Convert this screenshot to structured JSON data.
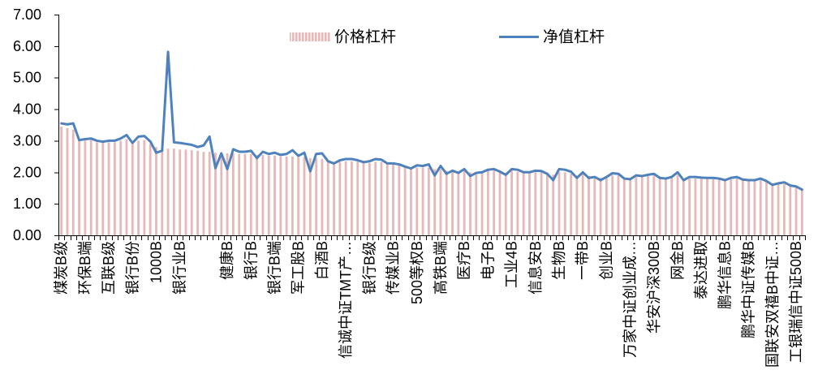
{
  "chart_data": {
    "type": "bar",
    "categories": [
      "煤炭B级",
      "",
      "",
      "",
      "环保B端",
      "",
      "",
      "",
      "互联B级",
      "",
      "",
      "",
      "银行B份",
      "",
      "",
      "",
      "1000B",
      "",
      "",
      "",
      "银行业B",
      "",
      "",
      "",
      "",
      "",
      "",
      "",
      "健康B",
      "",
      "",
      "",
      "银行B",
      "",
      "",
      "",
      "银行B端",
      "",
      "",
      "",
      "军工股B",
      "",
      "",
      "",
      "白酒B",
      "",
      "",
      "",
      "信诚中证TMT产…",
      "",
      "",
      "",
      "银行B级",
      "",
      "",
      "",
      "传媒业B",
      "",
      "",
      "",
      "500等权B",
      "",
      "",
      "",
      "高铁B端",
      "",
      "",
      "",
      "医疗B",
      "",
      "",
      "",
      "电子B",
      "",
      "",
      "",
      "工业4B",
      "",
      "",
      "",
      "信息安B",
      "",
      "",
      "",
      "生物B",
      "",
      "",
      "",
      "一带B",
      "",
      "",
      "",
      "创业B",
      "",
      "",
      "",
      "万家中证创业成…",
      "",
      "",
      "",
      "华安沪深300B",
      "",
      "",
      "",
      "网金B",
      "",
      "",
      "",
      "泰达进取",
      "",
      "",
      "",
      "鹏华信息B",
      "",
      "",
      "",
      "鹏华中证传媒B",
      "",
      "",
      "",
      "国联安双禧B中证…",
      "",
      "",
      "",
      "工银瑞信中证500B",
      ""
    ],
    "series": [
      {
        "name": "价格杠杆",
        "type": "bar",
        "color": "#E6B9B8",
        "values": [
          3.45,
          3.4,
          3.35,
          3.0,
          3.0,
          3.02,
          2.95,
          2.93,
          2.95,
          2.95,
          3.0,
          3.05,
          2.9,
          3.0,
          3.02,
          2.9,
          2.8,
          2.78,
          2.75,
          2.75,
          2.72,
          2.72,
          2.7,
          2.68,
          2.65,
          2.65,
          2.62,
          2.6,
          2.6,
          2.6,
          2.58,
          2.58,
          2.58,
          2.55,
          2.55,
          2.53,
          2.53,
          2.5,
          2.5,
          2.5,
          2.48,
          2.48,
          2.45,
          2.45,
          2.42,
          2.35,
          2.3,
          2.33,
          2.35,
          2.35,
          2.33,
          2.3,
          2.3,
          2.33,
          2.33,
          2.25,
          2.25,
          2.22,
          2.15,
          2.12,
          2.15,
          2.15,
          2.15,
          2.1,
          2.1,
          2.05,
          2.05,
          2.02,
          2.05,
          2.0,
          2.0,
          2.0,
          2.05,
          2.05,
          2.0,
          1.98,
          2.05,
          2.02,
          2.0,
          2.0,
          2.0,
          2.0,
          1.95,
          1.92,
          2.0,
          2.0,
          1.95,
          1.9,
          1.95,
          1.88,
          1.85,
          1.82,
          1.85,
          1.9,
          1.9,
          1.82,
          1.8,
          1.85,
          1.85,
          1.88,
          1.9,
          1.82,
          1.8,
          1.82,
          1.9,
          1.78,
          1.8,
          1.8,
          1.8,
          1.8,
          1.78,
          1.78,
          1.75,
          1.78,
          1.8,
          1.75,
          1.72,
          1.72,
          1.75,
          1.7,
          1.6,
          1.62,
          1.62,
          1.55,
          1.52,
          1.45
        ]
      },
      {
        "name": "净值杠杆",
        "type": "line",
        "color": "#4F81BD",
        "values": [
          3.55,
          3.52,
          3.55,
          3.02,
          3.05,
          3.07,
          3.0,
          2.97,
          3.0,
          3.0,
          3.07,
          3.18,
          2.93,
          3.13,
          3.15,
          2.98,
          2.62,
          2.68,
          5.82,
          2.95,
          2.93,
          2.9,
          2.87,
          2.8,
          2.85,
          3.13,
          2.13,
          2.6,
          2.1,
          2.73,
          2.65,
          2.65,
          2.68,
          2.45,
          2.65,
          2.58,
          2.62,
          2.55,
          2.58,
          2.7,
          2.52,
          2.62,
          2.03,
          2.58,
          2.6,
          2.35,
          2.28,
          2.38,
          2.42,
          2.42,
          2.38,
          2.32,
          2.35,
          2.42,
          2.4,
          2.28,
          2.28,
          2.25,
          2.18,
          2.12,
          2.22,
          2.2,
          2.25,
          1.9,
          2.2,
          1.95,
          2.05,
          1.98,
          2.1,
          1.88,
          1.98,
          2.0,
          2.08,
          2.1,
          2.02,
          1.92,
          2.1,
          2.08,
          2.0,
          2.0,
          2.05,
          2.04,
          1.95,
          1.75,
          2.1,
          2.08,
          2.02,
          1.82,
          2.0,
          1.82,
          1.85,
          1.75,
          1.85,
          1.97,
          1.95,
          1.8,
          1.78,
          1.9,
          1.88,
          1.92,
          1.95,
          1.82,
          1.8,
          1.85,
          2.0,
          1.75,
          1.85,
          1.85,
          1.83,
          1.82,
          1.82,
          1.8,
          1.75,
          1.82,
          1.85,
          1.77,
          1.75,
          1.75,
          1.8,
          1.72,
          1.6,
          1.65,
          1.68,
          1.58,
          1.55,
          1.45
        ]
      }
    ],
    "yticks": [
      "0.00",
      "1.00",
      "2.00",
      "3.00",
      "4.00",
      "5.00",
      "6.00",
      "7.00"
    ],
    "ylim": [
      0,
      7
    ],
    "grid": false,
    "legend": "top"
  }
}
